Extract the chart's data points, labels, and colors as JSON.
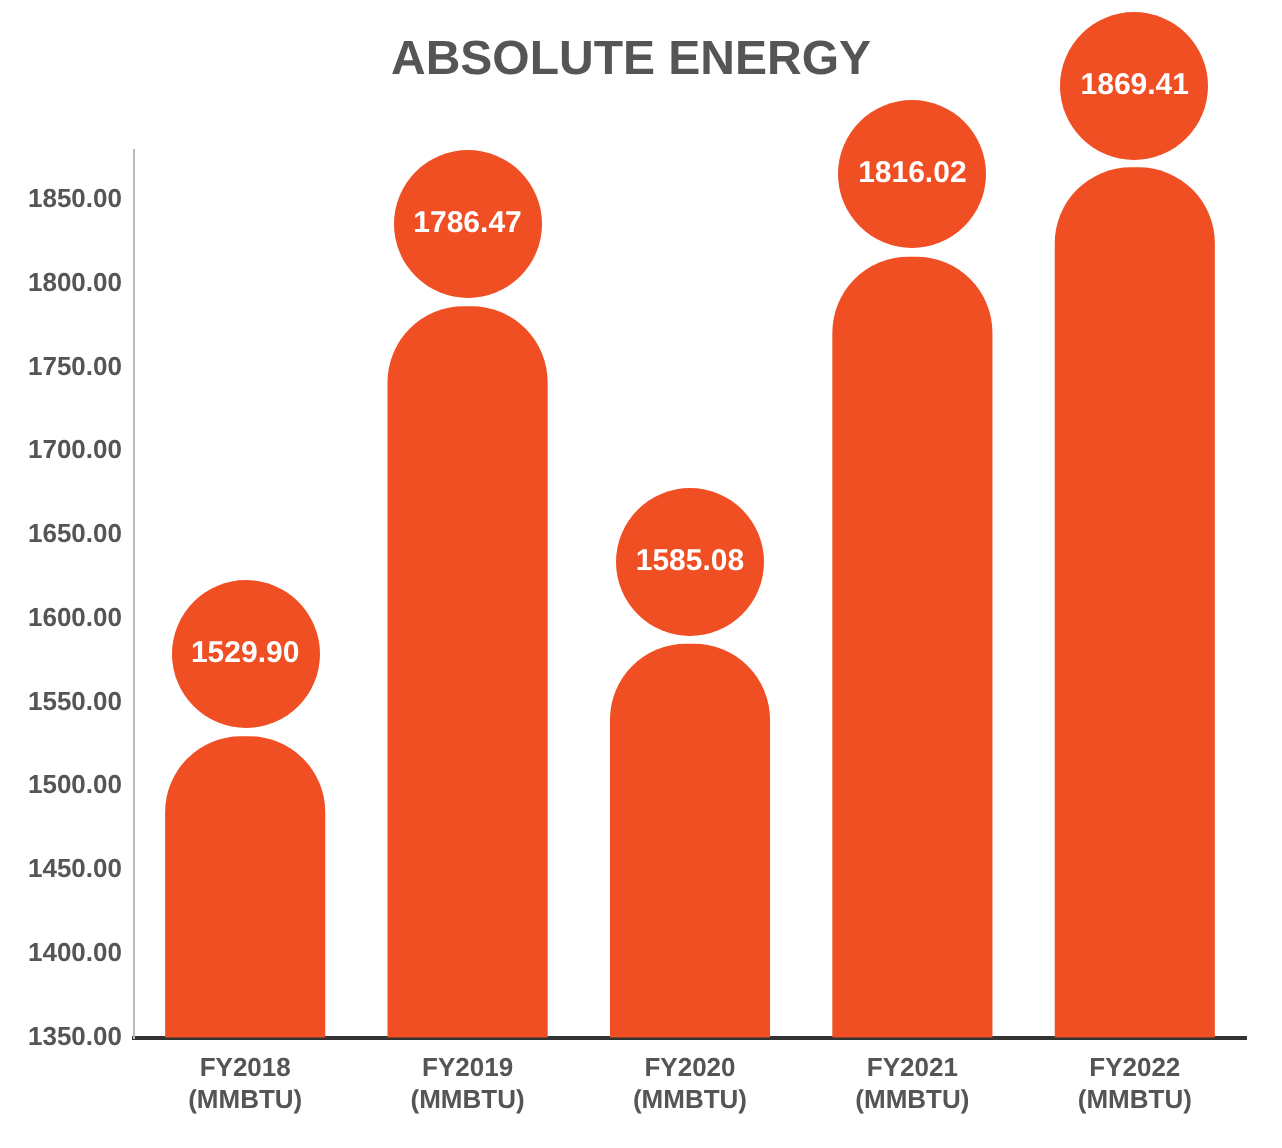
{
  "chart_data": {
    "type": "bar",
    "title": "ABSOLUTE ENERGY",
    "categories": [
      "FY2018 (MMBTU)",
      "FY2019 (MMBTU)",
      "FY2020 (MMBTU)",
      "FY2021 (MMBTU)",
      "FY2022 (MMBTU)"
    ],
    "values": [
      1529.9,
      1786.47,
      1585.08,
      1816.02,
      1869.41
    ],
    "value_labels": [
      "1529.90",
      "1786.47",
      "1585.08",
      "1816.02",
      "1869.41"
    ],
    "color": "#f04e23",
    "ylim": [
      1350,
      1880
    ],
    "yticks": [
      {
        "value": 1350,
        "label": "1350.00"
      },
      {
        "value": 1400,
        "label": "1400.00"
      },
      {
        "value": 1450,
        "label": "1450.00"
      },
      {
        "value": 1500,
        "label": "1500.00"
      },
      {
        "value": 1550,
        "label": "1550.00"
      },
      {
        "value": 1600,
        "label": "1600.00"
      },
      {
        "value": 1650,
        "label": "1650.00"
      },
      {
        "value": 1700,
        "label": "1700.00"
      },
      {
        "value": 1750,
        "label": "1750.00"
      },
      {
        "value": 1800,
        "label": "1800.00"
      },
      {
        "value": 1850,
        "label": "1850.00"
      }
    ]
  }
}
